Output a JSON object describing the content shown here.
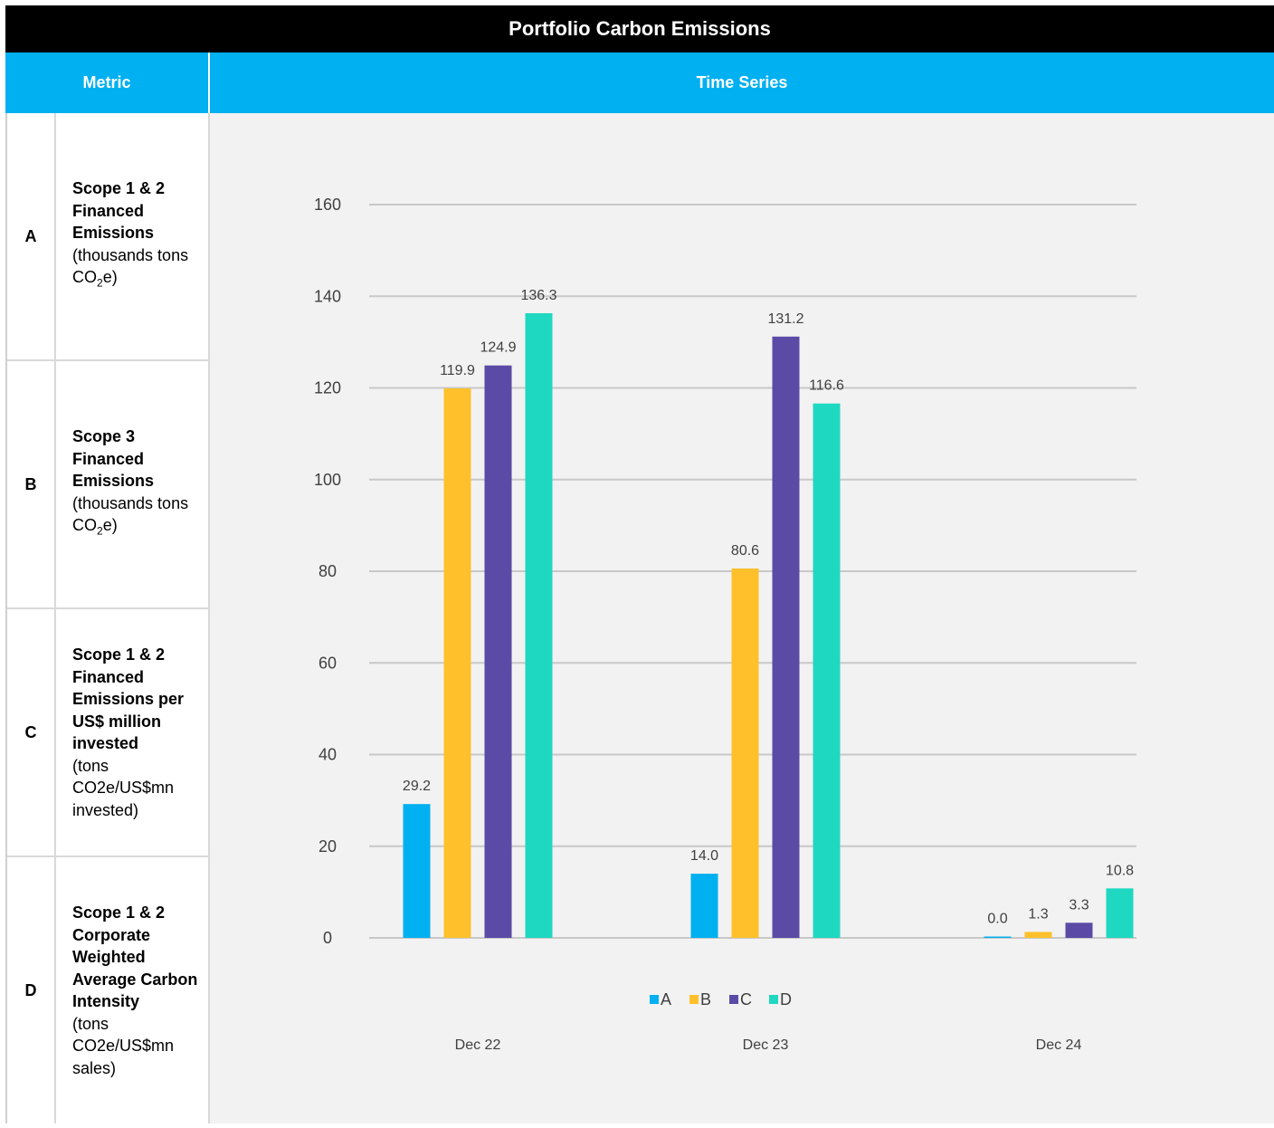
{
  "table": {
    "title": "Portfolio Carbon Emissions",
    "header_metric": "Metric",
    "header_time_series": "Time Series",
    "metrics": [
      {
        "letter": "A",
        "name": "Scope 1 & 2 Financed Emissions",
        "unit_pre": "(thousands tons CO",
        "unit_sub": "2",
        "unit_post": "e)"
      },
      {
        "letter": "B",
        "name": "Scope 3 Financed Emissions",
        "unit_pre": "(thousands tons CO",
        "unit_sub": "2",
        "unit_post": "e)"
      },
      {
        "letter": "C",
        "name": "Scope 1 & 2 Financed Emissions per US$ million invested",
        "unit_pre": "(tons CO2e/US$mn invested)",
        "unit_sub": "",
        "unit_post": ""
      },
      {
        "letter": "D",
        "name": "Scope 1 & 2 Corporate Weighted Average Carbon Intensity",
        "unit_pre": "(tons CO2e/US$mn sales)",
        "unit_sub": "",
        "unit_post": ""
      }
    ]
  },
  "chart_data": {
    "type": "bar",
    "categories": [
      "Dec 22",
      "Dec 23",
      "Dec 24"
    ],
    "series": [
      {
        "name": "A",
        "color": "#00b0f0",
        "values": [
          29.2,
          14.0,
          0.0
        ]
      },
      {
        "name": "B",
        "color": "#ffc02b",
        "values": [
          119.9,
          80.6,
          1.3
        ]
      },
      {
        "name": "C",
        "color": "#5b4ba6",
        "values": [
          124.9,
          131.2,
          3.3
        ]
      },
      {
        "name": "D",
        "color": "#1fd8c1",
        "values": [
          136.3,
          116.6,
          10.8
        ]
      }
    ],
    "ylim": [
      0,
      160
    ],
    "yticks": [
      0,
      20,
      40,
      60,
      80,
      100,
      120,
      140,
      160
    ],
    "grid": true,
    "legend": "bottom"
  }
}
